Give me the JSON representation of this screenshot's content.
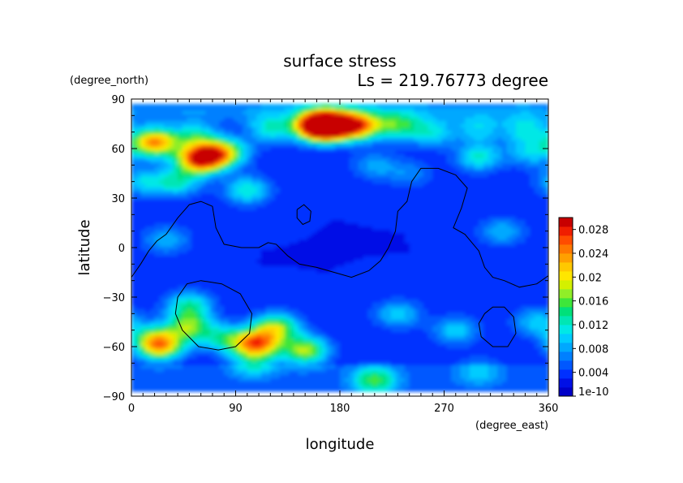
{
  "chart_data": {
    "type": "heatmap",
    "title": "surface stress",
    "subtitle": "Ls = 219.76773 degree",
    "xlabel": "longitude",
    "ylabel": "latitude",
    "x_unit": "(degree_east)",
    "y_unit": "(degree_north)",
    "xlim": [
      0,
      360
    ],
    "ylim": [
      -90,
      90
    ],
    "x_ticks": [
      0,
      90,
      180,
      270,
      360
    ],
    "y_ticks": [
      -90,
      -60,
      -30,
      0,
      30,
      60,
      90
    ],
    "data_lat_range": [
      -87,
      86
    ],
    "colorbar": {
      "min": 1e-10,
      "max": 0.03,
      "tick_labels": [
        "1e-10",
        "0.004",
        "0.008",
        "0.012",
        "0.016",
        "0.02",
        "0.024",
        "0.028"
      ],
      "tick_values": [
        0,
        0.004,
        0.008,
        0.012,
        0.016,
        0.02,
        0.024,
        0.028
      ],
      "colors": [
        "#0000c8",
        "#0010e6",
        "#0030ff",
        "#0058ff",
        "#0080ff",
        "#00a8ff",
        "#00ccff",
        "#00e8e6",
        "#00e6b4",
        "#00e07a",
        "#3ee63a",
        "#90ee28",
        "#d4f000",
        "#ffe600",
        "#ffc800",
        "#ffa000",
        "#ff7800",
        "#ff4c00",
        "#f01e00",
        "#c80000"
      ]
    },
    "stress_features": [
      {
        "lon": 170,
        "lat": 74,
        "value": 0.03
      },
      {
        "lon": 160,
        "lat": 74,
        "value": 0.026
      },
      {
        "lon": 195,
        "lat": 74,
        "value": 0.024
      },
      {
        "lon": 230,
        "lat": 74,
        "value": 0.014
      },
      {
        "lon": 260,
        "lat": 70,
        "value": 0.011
      },
      {
        "lon": 120,
        "lat": 72,
        "value": 0.012
      },
      {
        "lon": 300,
        "lat": 72,
        "value": 0.01
      },
      {
        "lon": 340,
        "lat": 72,
        "value": 0.011
      },
      {
        "lon": 20,
        "lat": 64,
        "value": 0.024
      },
      {
        "lon": 55,
        "lat": 68,
        "value": 0.012
      },
      {
        "lon": 60,
        "lat": 54,
        "value": 0.03
      },
      {
        "lon": 80,
        "lat": 58,
        "value": 0.018
      },
      {
        "lon": 40,
        "lat": 40,
        "value": 0.012
      },
      {
        "lon": 10,
        "lat": 40,
        "value": 0.01
      },
      {
        "lon": 100,
        "lat": 35,
        "value": 0.012
      },
      {
        "lon": 210,
        "lat": 50,
        "value": 0.008
      },
      {
        "lon": 240,
        "lat": 45,
        "value": 0.007
      },
      {
        "lon": 300,
        "lat": 55,
        "value": 0.012
      },
      {
        "lon": 345,
        "lat": 58,
        "value": 0.01
      },
      {
        "lon": 30,
        "lat": 5,
        "value": 0.009
      },
      {
        "lon": 320,
        "lat": 10,
        "value": 0.009
      },
      {
        "lon": 50,
        "lat": -35,
        "value": 0.013
      },
      {
        "lon": 50,
        "lat": -48,
        "value": 0.016
      },
      {
        "lon": 20,
        "lat": -55,
        "value": 0.013
      },
      {
        "lon": 25,
        "lat": -60,
        "value": 0.018
      },
      {
        "lon": 80,
        "lat": -55,
        "value": 0.012
      },
      {
        "lon": 108,
        "lat": -58,
        "value": 0.024
      },
      {
        "lon": 125,
        "lat": -48,
        "value": 0.017
      },
      {
        "lon": 150,
        "lat": -62,
        "value": 0.018
      },
      {
        "lon": 105,
        "lat": -70,
        "value": 0.01
      },
      {
        "lon": 230,
        "lat": -40,
        "value": 0.01
      },
      {
        "lon": 280,
        "lat": -50,
        "value": 0.01
      },
      {
        "lon": 210,
        "lat": -80,
        "value": 0.014
      },
      {
        "lon": 300,
        "lat": -75,
        "value": 0.008
      },
      {
        "lon": 350,
        "lat": -45,
        "value": 0.01
      }
    ],
    "topography_contours": [
      {
        "name": "tharsis-boundary",
        "points": [
          [
            0,
            -18
          ],
          [
            8,
            -10
          ],
          [
            15,
            -2
          ],
          [
            22,
            4
          ],
          [
            30,
            8
          ],
          [
            40,
            18
          ],
          [
            50,
            26
          ],
          [
            60,
            28
          ],
          [
            70,
            25
          ],
          [
            73,
            12
          ],
          [
            80,
            2
          ],
          [
            95,
            0
          ],
          [
            110,
            0
          ],
          [
            118,
            3
          ],
          [
            125,
            2
          ],
          [
            135,
            -5
          ],
          [
            145,
            -10
          ],
          [
            160,
            -12
          ],
          [
            175,
            -15
          ],
          [
            190,
            -18
          ],
          [
            205,
            -14
          ],
          [
            215,
            -8
          ],
          [
            222,
            0
          ],
          [
            228,
            10
          ],
          [
            230,
            22
          ],
          [
            238,
            28
          ],
          [
            242,
            40
          ],
          [
            250,
            48
          ],
          [
            265,
            48
          ],
          [
            280,
            44
          ],
          [
            290,
            36
          ],
          [
            285,
            24
          ],
          [
            278,
            12
          ],
          [
            288,
            8
          ],
          [
            300,
            -2
          ],
          [
            305,
            -12
          ],
          [
            312,
            -18
          ],
          [
            322,
            -20
          ],
          [
            335,
            -24
          ],
          [
            350,
            -22
          ],
          [
            360,
            -17
          ]
        ]
      },
      {
        "name": "olympus-ring",
        "points": [
          [
            143,
            23
          ],
          [
            149,
            26
          ],
          [
            155,
            22
          ],
          [
            154,
            16
          ],
          [
            148,
            14
          ],
          [
            143,
            18
          ],
          [
            143,
            23
          ]
        ]
      },
      {
        "name": "hellas-ring",
        "points": [
          [
            40,
            -30
          ],
          [
            48,
            -22
          ],
          [
            60,
            -20
          ],
          [
            78,
            -22
          ],
          [
            94,
            -28
          ],
          [
            104,
            -40
          ],
          [
            102,
            -52
          ],
          [
            90,
            -60
          ],
          [
            75,
            -62
          ],
          [
            58,
            -60
          ],
          [
            44,
            -50
          ],
          [
            38,
            -40
          ],
          [
            40,
            -30
          ]
        ]
      },
      {
        "name": "argyre-ring",
        "points": [
          [
            305,
            -40
          ],
          [
            312,
            -36
          ],
          [
            322,
            -36
          ],
          [
            330,
            -42
          ],
          [
            332,
            -52
          ],
          [
            325,
            -60
          ],
          [
            312,
            -60
          ],
          [
            302,
            -54
          ],
          [
            300,
            -46
          ],
          [
            305,
            -40
          ]
        ]
      }
    ]
  }
}
